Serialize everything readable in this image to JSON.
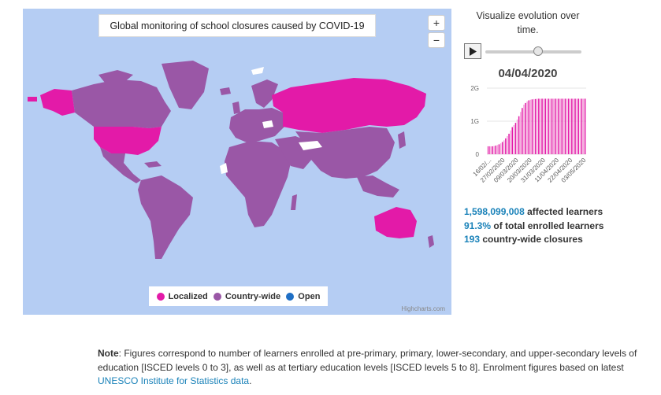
{
  "map": {
    "title": "Global monitoring of school closures caused by COVID-19",
    "zoom_in": "+",
    "zoom_out": "−",
    "legend": [
      {
        "label": "Localized",
        "color": "#e31aa8"
      },
      {
        "label": "Country-wide",
        "color": "#9a57a6"
      },
      {
        "label": "Open",
        "color": "#1f6fc5"
      }
    ],
    "credits": "Highcharts.com",
    "colors": {
      "ocean": "#b5cdf3",
      "country_wide": "#9a57a6",
      "localized": "#e31aa8",
      "no_data": "#ffffff"
    }
  },
  "timeline": {
    "heading": "Visualize evolution over time.",
    "current_date": "04/04/2020",
    "progress": 0.55
  },
  "chart_data": {
    "type": "bar",
    "ylabel": "",
    "yticks": [
      "0",
      "1G",
      "2G"
    ],
    "ylim": [
      0,
      2000000000
    ],
    "xticks": [
      "16/02/...",
      "27/02/2020",
      "09/03/2020",
      "20/03/2020",
      "31/03/2020",
      "11/04/2020",
      "22/04/2020",
      "03/05/2020"
    ],
    "series": [
      {
        "values": [
          0.24,
          0.24,
          0.24,
          0.24,
          0.25,
          0.26,
          0.28,
          0.3,
          0.33,
          0.37,
          0.42,
          0.48,
          0.55,
          0.62,
          0.72,
          0.82,
          0.88,
          0.95,
          1.05,
          1.15,
          1.28,
          1.4,
          1.5,
          1.55,
          1.6,
          1.63,
          1.65,
          1.66,
          1.67,
          1.67,
          1.68,
          1.68,
          1.68,
          1.68,
          1.68,
          1.68,
          1.68,
          1.68,
          1.68,
          1.68,
          1.68,
          1.68,
          1.68,
          1.68,
          1.68,
          1.68,
          1.68,
          1.68,
          1.68,
          1.68,
          1.68,
          1.68,
          1.68,
          1.68,
          1.68,
          1.68,
          1.68,
          1.68,
          1.68,
          1.68
        ],
        "color": "#e31aa8"
      }
    ]
  },
  "stats": {
    "learners_value": "1,598,099,008",
    "learners_label": "affected learners",
    "percent_value": "91.3%",
    "percent_label": "of total enrolled learners",
    "closures_value": "193",
    "closures_label": "country-wide closures"
  },
  "note": {
    "bold": "Note",
    "text": ": Figures correspond to number of learners enrolled at pre-primary, primary, lower-secondary, and upper-secondary levels of education [ISCED levels 0 to 3], as well as at tertiary education levels [ISCED levels 5 to 8]. Enrolment figures based on latest ",
    "link": "UNESCO Institute for Statistics data",
    "end": "."
  }
}
